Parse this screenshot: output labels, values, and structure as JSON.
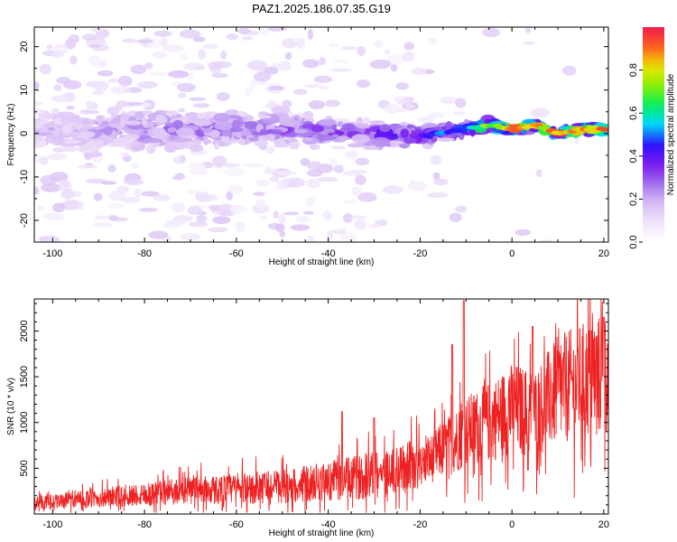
{
  "title": "PAZ1.2025.186.07.35.G19",
  "colors": {
    "snr_line": "#ee2222",
    "axes": "#000000"
  },
  "chart_data": [
    {
      "type": "heatmap",
      "xlabel": "Height of straight line (km)",
      "ylabel": "Frequency (Hz)",
      "xlim": [
        -104,
        21
      ],
      "ylim": [
        -25,
        24.5
      ],
      "x_ticks": [
        -100,
        -80,
        -60,
        -40,
        -20,
        0,
        20
      ],
      "y_ticks": [
        -20,
        -10,
        0,
        10,
        20
      ],
      "colorbar": {
        "label": "Normalized spectral amplitude",
        "range": [
          0,
          1
        ],
        "ticks": [
          0.0,
          0.2,
          0.4,
          0.6,
          0.8
        ],
        "colormap": [
          "#ffffff",
          "#f0e4fb",
          "#d9bff5",
          "#a070ec",
          "#7a16f0",
          "#2a14ff",
          "#00d8ff",
          "#00f060",
          "#8af000",
          "#f0e400",
          "#ff5a1e",
          "#f01e50"
        ]
      },
      "ridge": [
        {
          "x": -95,
          "freq": 0.5,
          "amp": 0.2,
          "spread": 6
        },
        {
          "x": -80,
          "freq": 1.0,
          "amp": 0.28,
          "spread": 5
        },
        {
          "x": -60,
          "freq": 1.0,
          "amp": 0.3,
          "spread": 4
        },
        {
          "x": -40,
          "freq": 0.5,
          "amp": 0.34,
          "spread": 3
        },
        {
          "x": -30,
          "freq": 0.0,
          "amp": 0.4,
          "spread": 2.5
        },
        {
          "x": -20,
          "freq": -0.5,
          "amp": 0.45,
          "spread": 2
        },
        {
          "x": -10,
          "freq": 1.0,
          "amp": 0.55,
          "spread": 1.5
        },
        {
          "x": -5,
          "freq": 2.0,
          "amp": 0.75,
          "spread": 1.2
        },
        {
          "x": 0,
          "freq": 1.0,
          "amp": 0.9,
          "spread": 1.0
        },
        {
          "x": 5,
          "freq": 2.0,
          "amp": 0.85,
          "spread": 1.0
        },
        {
          "x": 10,
          "freq": 0.0,
          "amp": 0.95,
          "spread": 0.9
        },
        {
          "x": 15,
          "freq": 1.0,
          "amp": 0.92,
          "spread": 0.9
        },
        {
          "x": 21,
          "freq": 1.0,
          "amp": 0.9,
          "spread": 0.9
        }
      ]
    },
    {
      "type": "line",
      "xlabel": "Height of straight line (km)",
      "ylabel": "SNR (10 * v/v)",
      "xlim": [
        -104,
        21
      ],
      "ylim": [
        0,
        2350
      ],
      "x_ticks": [
        -100,
        -80,
        -60,
        -40,
        -20,
        0,
        20
      ],
      "y_ticks": [
        500,
        1000,
        1500,
        2000
      ],
      "series": [
        {
          "trend": [
            {
              "x": -104,
              "y": 120
            },
            {
              "x": -90,
              "y": 170
            },
            {
              "x": -80,
              "y": 220
            },
            {
              "x": -70,
              "y": 250
            },
            {
              "x": -60,
              "y": 280
            },
            {
              "x": -50,
              "y": 300
            },
            {
              "x": -40,
              "y": 360
            },
            {
              "x": -30,
              "y": 420
            },
            {
              "x": -20,
              "y": 520
            },
            {
              "x": -15,
              "y": 700
            },
            {
              "x": -10,
              "y": 900
            },
            {
              "x": -5,
              "y": 1000
            },
            {
              "x": 0,
              "y": 1150
            },
            {
              "x": 5,
              "y": 1100
            },
            {
              "x": 10,
              "y": 1350
            },
            {
              "x": 15,
              "y": 1450
            },
            {
              "x": 21,
              "y": 1550
            }
          ],
          "peaks": [
            {
              "x": -10.5,
              "y": 2330
            },
            {
              "x": -13,
              "y": 1850
            },
            {
              "x": 4.5,
              "y": 2050
            },
            {
              "x": 20,
              "y": 2150
            },
            {
              "x": -37,
              "y": 1120
            },
            {
              "x": -30,
              "y": 1050
            },
            {
              "x": 3.5,
              "y": 480
            }
          ]
        }
      ]
    }
  ]
}
